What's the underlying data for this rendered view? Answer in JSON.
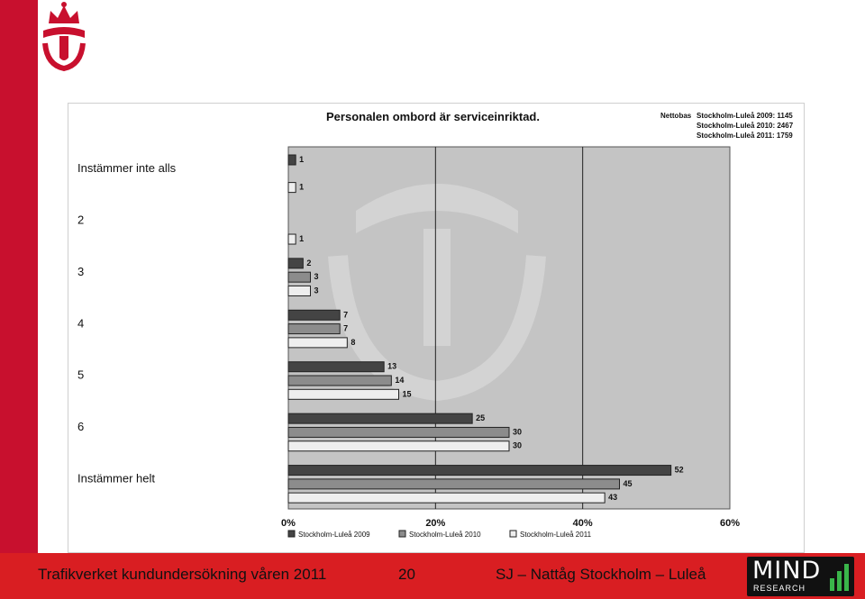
{
  "footer": {
    "left": "Trafikverket kundundersökning våren 2011",
    "page": "20",
    "right": "SJ – Nattåg Stockholm – Luleå"
  },
  "brand": {
    "mind_word": "MIND",
    "mind_sub": "RESEARCH"
  },
  "colors": {
    "sidebar": "#c8102e",
    "footer": "#d91e22",
    "plot_bg": "#c4c4c4"
  },
  "nettobas": {
    "label": "Nettobas",
    "lines": [
      "Stockholm-Luleå 2009: 1145",
      "Stockholm-Luleå 2010: 2467",
      "Stockholm-Luleå 2011: 1759"
    ]
  },
  "chart_data": {
    "type": "bar",
    "orientation": "horizontal",
    "title": "Personalen ombord är serviceinriktad.",
    "categories": [
      "Instämmer inte alls",
      "2",
      "3",
      "4",
      "5",
      "6",
      "Instämmer helt"
    ],
    "series": [
      {
        "name": "Stockholm-Luleå 2009",
        "values": [
          1,
          null,
          2,
          7,
          13,
          25,
          52
        ],
        "color": "#444444"
      },
      {
        "name": "Stockholm-Luleå 2010",
        "values": [
          null,
          null,
          3,
          7,
          14,
          30,
          45
        ],
        "color": "#8c8c8c"
      },
      {
        "name": "Stockholm-Luleå 2011",
        "values": [
          1,
          1,
          3,
          8,
          15,
          30,
          43
        ],
        "color": "#eeeeee"
      }
    ],
    "xlim": [
      0,
      60
    ],
    "xticks": [
      0,
      20,
      40,
      60
    ],
    "tick_labels": [
      "0%",
      "20%",
      "40%",
      "60%"
    ],
    "legend_position": "bottom",
    "grid": true
  }
}
